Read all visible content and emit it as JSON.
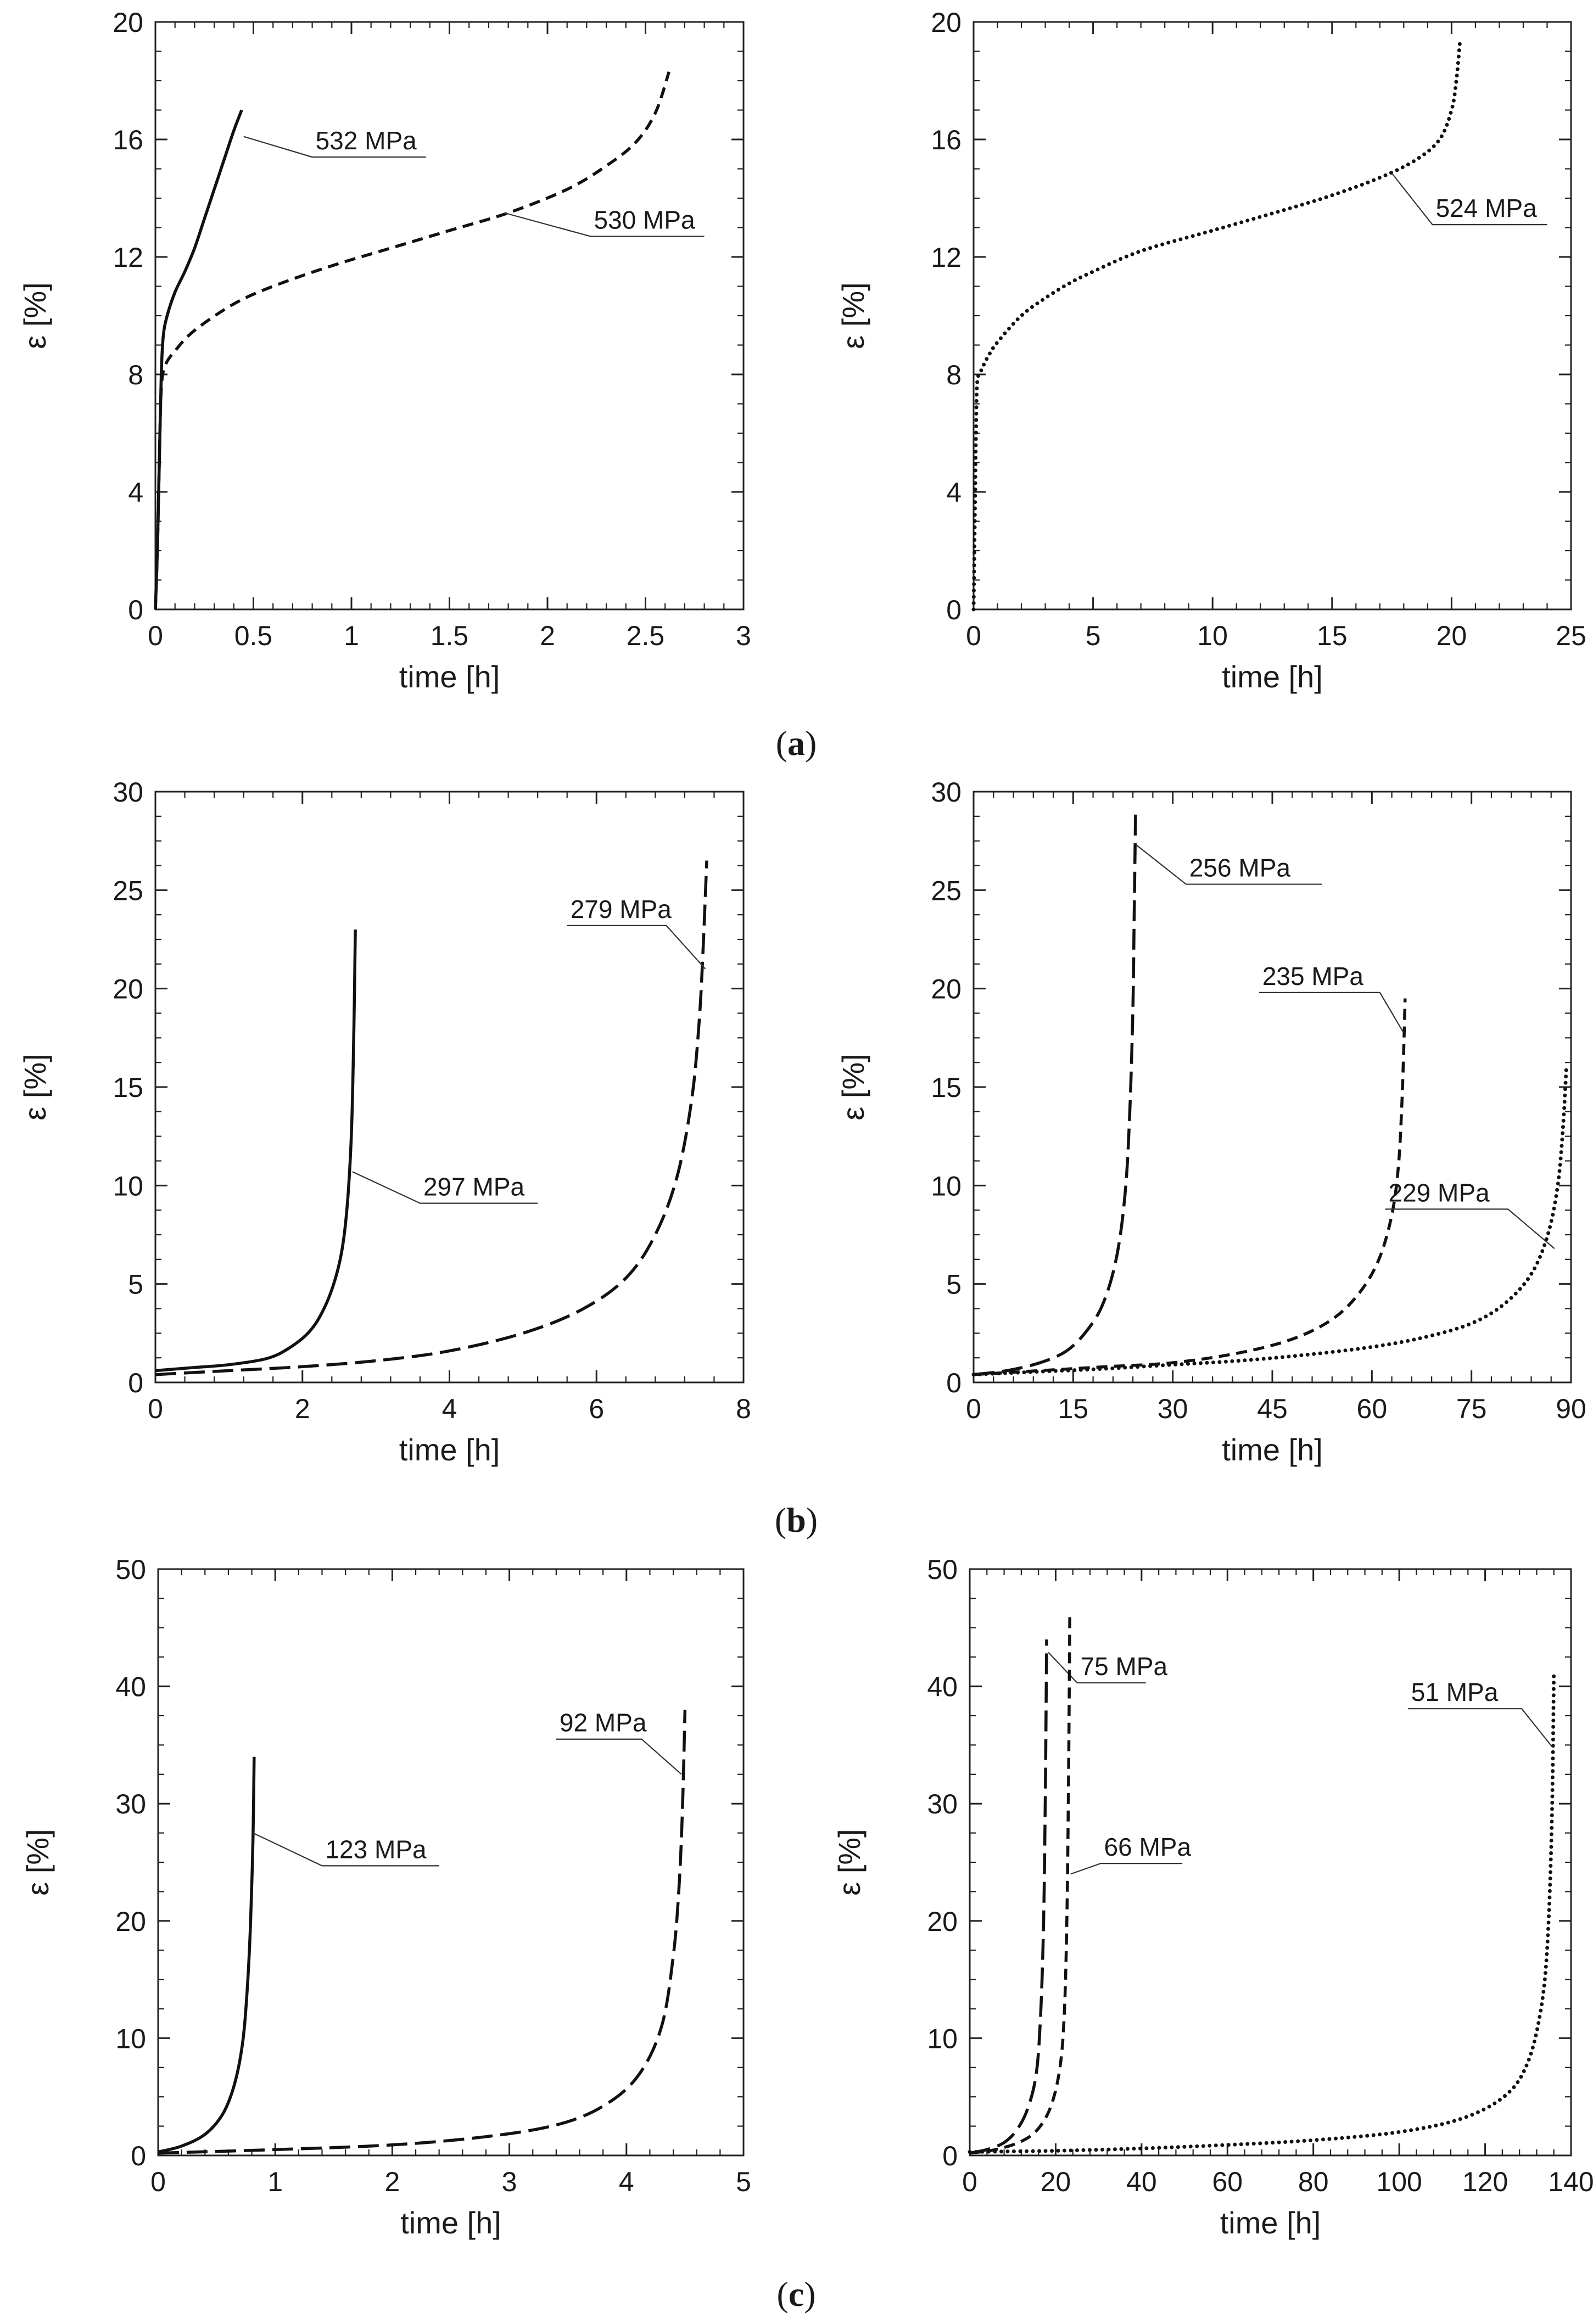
{
  "figure": {
    "captions": [
      {
        "letter": "a"
      },
      {
        "letter": "b"
      },
      {
        "letter": "c"
      }
    ]
  },
  "chart_data": [
    {
      "id": "a-left",
      "type": "line",
      "group": "a",
      "xlabel": "time [h]",
      "ylabel": "ε [%]",
      "xlim": [
        0,
        3
      ],
      "ylim": [
        0,
        20
      ],
      "xticks": [
        0,
        0.5,
        1,
        1.5,
        2,
        2.5,
        3
      ],
      "xtick_labels": [
        "0",
        "0.5",
        "1",
        "1.5",
        "2",
        "2.5",
        "3"
      ],
      "yticks": [
        0,
        4,
        8,
        12,
        16,
        20
      ],
      "series": [
        {
          "name": "532 MPa",
          "style": "solid",
          "x": [
            0,
            0.01,
            0.02,
            0.03,
            0.04,
            0.06,
            0.1,
            0.15,
            0.2,
            0.25,
            0.3,
            0.35,
            0.4,
            0.44
          ],
          "y": [
            0,
            2,
            5,
            8,
            9.3,
            10,
            10.8,
            11.5,
            12.3,
            13.3,
            14.3,
            15.3,
            16.3,
            17.0
          ],
          "label": {
            "text": "532 MPa",
            "at": [
              0.45,
              16.1
            ],
            "x": 0.8,
            "y": 15.4,
            "x2": 1.38
          }
        },
        {
          "name": "530 MPa",
          "style": "dash",
          "x": [
            0,
            0.01,
            0.02,
            0.03,
            0.05,
            0.1,
            0.2,
            0.4,
            0.6,
            0.9,
            1.2,
            1.5,
            1.8,
            2.1,
            2.3,
            2.45,
            2.55,
            2.62
          ],
          "y": [
            0,
            2,
            5,
            7.5,
            8.3,
            8.8,
            9.5,
            10.4,
            11,
            11.7,
            12.3,
            12.9,
            13.5,
            14.3,
            15.1,
            15.9,
            16.9,
            18.3
          ],
          "label": {
            "text": "530 MPa",
            "at": [
              1.78,
              13.5
            ],
            "x": 2.22,
            "y": 12.7,
            "x2": 2.8
          }
        }
      ]
    },
    {
      "id": "a-right",
      "type": "line",
      "group": "a",
      "xlabel": "time [h]",
      "ylabel": "ε [%]",
      "xlim": [
        0,
        25
      ],
      "ylim": [
        0,
        20
      ],
      "xticks": [
        0,
        5,
        10,
        15,
        20,
        25
      ],
      "xtick_labels": [
        "0",
        "5",
        "10",
        "15",
        "20",
        "25"
      ],
      "yticks": [
        0,
        4,
        8,
        12,
        16,
        20
      ],
      "series": [
        {
          "name": "524 MPa",
          "style": "dot",
          "x": [
            0,
            0.05,
            0.1,
            0.15,
            0.3,
            0.6,
            1,
            2,
            3,
            4,
            5,
            7,
            10,
            13,
            15,
            17,
            18.5,
            19.5,
            20,
            20.2,
            20.35
          ],
          "y": [
            0,
            3,
            6,
            7.7,
            8.1,
            8.6,
            9.1,
            10,
            10.6,
            11.1,
            11.5,
            12.2,
            12.9,
            13.6,
            14.1,
            14.7,
            15.3,
            16,
            17,
            18,
            19.3
          ],
          "label": {
            "text": "524 MPa",
            "at": [
              17.5,
              14.85
            ],
            "x": 19.2,
            "y": 13.1,
            "x2": 24.0
          }
        }
      ]
    },
    {
      "id": "b-left",
      "type": "line",
      "group": "b",
      "xlabel": "time [h]",
      "ylabel": "ε [%]",
      "xlim": [
        0,
        8
      ],
      "ylim": [
        0,
        30
      ],
      "xticks": [
        0,
        2,
        4,
        6,
        8
      ],
      "xtick_labels": [
        "0",
        "2",
        "4",
        "6",
        "8"
      ],
      "yticks": [
        0,
        5,
        10,
        15,
        20,
        25,
        30
      ],
      "series": [
        {
          "name": "297 MPa",
          "style": "solid",
          "x": [
            0,
            0.5,
            1,
            1.5,
            1.8,
            2.1,
            2.3,
            2.45,
            2.55,
            2.62,
            2.67,
            2.7,
            2.72
          ],
          "y": [
            0.6,
            0.75,
            0.9,
            1.2,
            1.7,
            2.6,
            3.8,
            5.3,
            7,
            9.5,
            13,
            18,
            23
          ],
          "label": {
            "text": "297 MPa",
            "at": [
              2.68,
              10.7
            ],
            "x": 3.6,
            "y": 9.1,
            "x2": 5.2
          }
        },
        {
          "name": "279 MPa",
          "style": "longdash",
          "x": [
            0,
            1,
            2,
            3,
            4,
            5,
            5.8,
            6.4,
            6.8,
            7.1,
            7.3,
            7.4,
            7.45,
            7.5
          ],
          "y": [
            0.4,
            0.6,
            0.8,
            1.1,
            1.6,
            2.5,
            3.7,
            5.3,
            7.5,
            10.5,
            14.5,
            18.5,
            22,
            26.5
          ],
          "label": {
            "text": "279 MPa",
            "at": [
              7.48,
              21.0
            ],
            "x": 6.95,
            "y": 23.2,
            "x2": 5.6
          }
        }
      ]
    },
    {
      "id": "b-right",
      "type": "line",
      "group": "b",
      "xlabel": "time [h]",
      "ylabel": "ε [%]",
      "xlim": [
        0,
        90
      ],
      "ylim": [
        0,
        30
      ],
      "xticks": [
        0,
        15,
        30,
        45,
        60,
        75,
        90
      ],
      "xtick_labels": [
        "0",
        "15",
        "30",
        "45",
        "60",
        "75",
        "90"
      ],
      "yticks": [
        0,
        5,
        10,
        15,
        20,
        25,
        30
      ],
      "series": [
        {
          "name": "256 MPa",
          "style": "longdash",
          "x": [
            0,
            5,
            10,
            14,
            17,
            19.5,
            21.5,
            22.8,
            23.5,
            24,
            24.2,
            24.4
          ],
          "y": [
            0.4,
            0.6,
            1.0,
            1.6,
            2.6,
            4,
            6.3,
            9.5,
            13.5,
            19,
            24,
            29
          ],
          "label": {
            "text": "256 MPa",
            "at": [
              24.5,
              27.3
            ],
            "x": 32,
            "y": 25.3,
            "x2": 52.5
          }
        },
        {
          "name": "235 MPa",
          "style": "dash",
          "x": [
            0,
            10,
            20,
            30,
            40,
            48,
            54,
            58,
            61,
            63,
            64,
            64.5,
            64.8,
            65
          ],
          "y": [
            0.4,
            0.6,
            0.8,
            1.0,
            1.5,
            2.2,
            3.2,
            4.5,
            6.2,
            8.5,
            11,
            14,
            17,
            19.5
          ],
          "label": {
            "text": "235 MPa",
            "at": [
              64.7,
              17.8
            ],
            "x": 61.2,
            "y": 19.8,
            "x2": 43
          }
        },
        {
          "name": "229 MPa",
          "style": "dot",
          "x": [
            0,
            10,
            20,
            30,
            40,
            50,
            60,
            68,
            75,
            80,
            84,
            86.5,
            88,
            88.8,
            89.3
          ],
          "y": [
            0.4,
            0.55,
            0.7,
            0.9,
            1.1,
            1.4,
            1.8,
            2.3,
            3.0,
            4.0,
            5.5,
            7.5,
            10,
            13,
            16
          ],
          "label": {
            "text": "229 MPa",
            "at": [
              87.5,
              6.8
            ],
            "x": 80.5,
            "y": 8.8,
            "x2": 62
          }
        }
      ]
    },
    {
      "id": "c-left",
      "type": "line",
      "group": "c",
      "xlabel": "time [h]",
      "ylabel": "ε [%]",
      "xlim": [
        0,
        5
      ],
      "ylim": [
        0,
        50
      ],
      "xticks": [
        0,
        1,
        2,
        3,
        4,
        5
      ],
      "xtick_labels": [
        "0",
        "1",
        "2",
        "3",
        "4",
        "5"
      ],
      "yticks": [
        0,
        10,
        20,
        30,
        40,
        50
      ],
      "series": [
        {
          "name": "123 MPa",
          "style": "solid",
          "x": [
            0,
            0.2,
            0.4,
            0.55,
            0.65,
            0.72,
            0.76,
            0.79,
            0.81,
            0.82
          ],
          "y": [
            0.3,
            0.8,
            1.8,
            3.5,
            6,
            9.5,
            14,
            20,
            27,
            34
          ],
          "label": {
            "text": "123 MPa",
            "at": [
              0.81,
              27.5
            ],
            "x": 1.4,
            "y": 24.7,
            "x2": 2.4
          }
        },
        {
          "name": "92 MPa",
          "style": "longdash",
          "x": [
            0,
            1,
            2,
            2.8,
            3.4,
            3.8,
            4.1,
            4.3,
            4.4,
            4.45,
            4.48,
            4.5
          ],
          "y": [
            0.2,
            0.5,
            0.9,
            1.6,
            2.6,
            4.2,
            6.8,
            11,
            17,
            23,
            30,
            38
          ],
          "label": {
            "text": "92 MPa",
            "at": [
              4.47,
              32.5
            ],
            "x": 4.13,
            "y": 35.5,
            "x2": 3.4
          }
        }
      ]
    },
    {
      "id": "c-right",
      "type": "line",
      "group": "c",
      "xlabel": "time [h]",
      "ylabel": "ε [%]",
      "xlim": [
        0,
        140
      ],
      "ylim": [
        0,
        50
      ],
      "xticks": [
        0,
        20,
        40,
        60,
        80,
        100,
        120,
        140
      ],
      "xtick_labels": [
        "0",
        "20",
        "40",
        "60",
        "80",
        "100",
        "120",
        "140"
      ],
      "yticks": [
        0,
        10,
        20,
        30,
        40,
        50
      ],
      "series": [
        {
          "name": "75 MPa",
          "style": "longdash",
          "x": [
            0,
            4,
            8,
            11,
            13.5,
            15.5,
            16.5,
            17.2,
            17.6,
            17.9
          ],
          "y": [
            0.2,
            0.5,
            1.1,
            2.2,
            4,
            7,
            12,
            20,
            31,
            44
          ],
          "label": {
            "text": "75 MPa",
            "at": [
              18.3,
              42.9
            ],
            "x": 25,
            "y": 40.3,
            "x2": 41
          }
        },
        {
          "name": "66 MPa",
          "style": "dash",
          "x": [
            0,
            6,
            12,
            16,
            19,
            21,
            22,
            22.6,
            23,
            23.3
          ],
          "y": [
            0.2,
            0.5,
            1.2,
            2.3,
            4.3,
            7.5,
            12,
            20,
            32,
            46
          ],
          "label": {
            "text": "66 MPa",
            "at": [
              23.5,
              24
            ],
            "x": 30.5,
            "y": 24.9,
            "x2": 49.5
          }
        },
        {
          "name": "51 MPa",
          "style": "dot",
          "x": [
            0,
            20,
            40,
            60,
            80,
            100,
            115,
            125,
            130,
            133,
            134.5,
            135.5,
            136
          ],
          "y": [
            0.3,
            0.4,
            0.6,
            0.9,
            1.3,
            2,
            3.2,
            5.2,
            8,
            12.5,
            18,
            28,
            41
          ],
          "label": {
            "text": "51 MPa",
            "at": [
              135.7,
              34.8
            ],
            "x": 128.5,
            "y": 38.1,
            "x2": 102
          }
        }
      ]
    }
  ]
}
